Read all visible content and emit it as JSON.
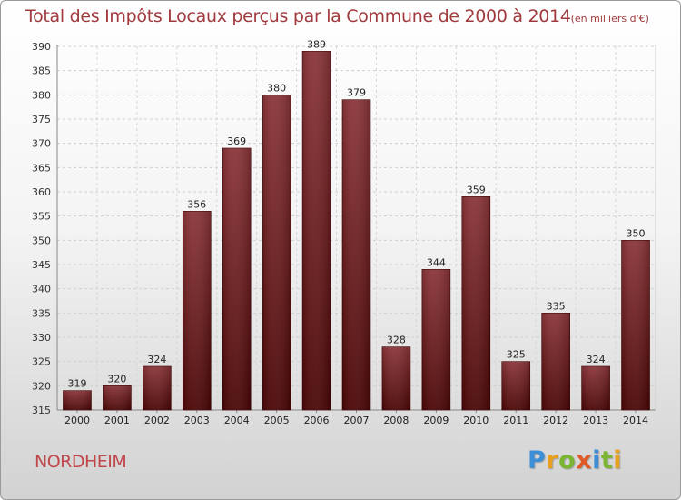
{
  "title": {
    "main": "Total des Impôts Locaux perçus par la Commune de 2000 à 2014",
    "unit": "(en milliers d'€)"
  },
  "city": "NORDHEIM",
  "logo": {
    "text": "Proxiti",
    "letters": [
      {
        "ch": "P",
        "color": "#3c8fd6"
      },
      {
        "ch": "r",
        "color": "#e8a020"
      },
      {
        "ch": "o",
        "color": "#7ab631"
      },
      {
        "ch": "x",
        "color": "#e05a26"
      },
      {
        "ch": "i",
        "color": "#3c8fd6"
      },
      {
        "ch": "t",
        "color": "#7ab631"
      },
      {
        "ch": "i",
        "color": "#e8a020"
      }
    ]
  },
  "chart_data": {
    "type": "bar",
    "title": "Total des Impôts Locaux perçus par la Commune de 2000 à 2014",
    "xlabel": "",
    "ylabel": "",
    "categories": [
      "2000",
      "2001",
      "2002",
      "2003",
      "2004",
      "2005",
      "2006",
      "2007",
      "2008",
      "2009",
      "2010",
      "2011",
      "2012",
      "2013",
      "2014"
    ],
    "values": [
      319,
      320,
      324,
      356,
      369,
      380,
      389,
      379,
      328,
      344,
      359,
      325,
      335,
      324,
      350
    ],
    "ylim": [
      315,
      390
    ],
    "yticks": [
      315,
      320,
      325,
      330,
      335,
      340,
      345,
      350,
      355,
      360,
      365,
      370,
      375,
      380,
      385,
      390
    ],
    "grid": true,
    "bar_color_top": "#8a3438",
    "bar_color_bottom": "#4a0505"
  }
}
